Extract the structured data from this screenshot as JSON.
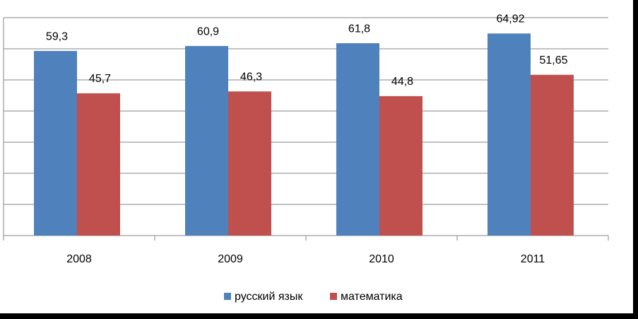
{
  "chart_data": {
    "type": "bar",
    "categories": [
      "2008",
      "2009",
      "2010",
      "2011"
    ],
    "series": [
      {
        "name": "русский язык",
        "color": "#4f81bd",
        "values": [
          59.3,
          60.9,
          61.8,
          64.92
        ],
        "value_labels": [
          "59,3",
          "60,9",
          "61,8",
          "64,92"
        ]
      },
      {
        "name": "математика",
        "color": "#c0504d",
        "values": [
          45.7,
          46.3,
          44.8,
          51.65
        ],
        "value_labels": [
          "45,7",
          "46,3",
          "44,8",
          "51,65"
        ]
      }
    ],
    "ylim": [
      0,
      70
    ],
    "yticks": [
      0,
      10,
      20,
      30,
      40,
      50,
      60,
      70
    ],
    "grid": true,
    "legend": "bottom"
  }
}
